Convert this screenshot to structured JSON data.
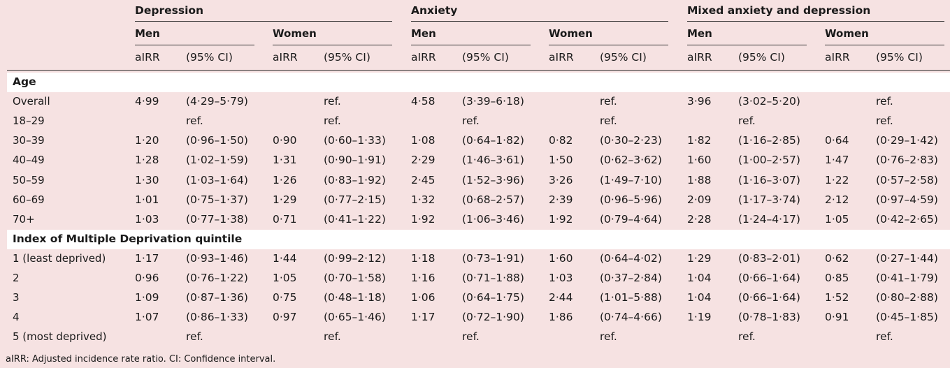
{
  "groups": [
    "Depression",
    "Anxiety",
    "Mixed anxiety and depression"
  ],
  "sexes": [
    "Men",
    "Women"
  ],
  "col_aIRR": "aIRR",
  "col_CI": "(95% CI)",
  "sections": [
    {
      "title": "Age",
      "rows": [
        {
          "label": "Overall",
          "vals": [
            "4·99",
            "(4·29–5·79)",
            "",
            "ref.",
            "4·58",
            "(3·39–6·18)",
            "",
            "ref.",
            "3·96",
            "(3·02–5·20)",
            "",
            "ref."
          ]
        },
        {
          "label": "18–29",
          "vals": [
            "",
            "ref.",
            "",
            "ref.",
            "",
            "ref.",
            "",
            "ref.",
            "",
            "ref.",
            "",
            "ref."
          ]
        },
        {
          "label": "30–39",
          "vals": [
            "1·20",
            "(0·96–1·50)",
            "0·90",
            "(0·60–1·33)",
            "1·08",
            "(0·64–1·82)",
            "0·82",
            "(0·30–2·23)",
            "1·82",
            "(1·16–2·85)",
            "0·64",
            "(0·29–1·42)"
          ]
        },
        {
          "label": "40–49",
          "vals": [
            "1·28",
            "(1·02–1·59)",
            "1·31",
            "(0·90–1·91)",
            "2·29",
            "(1·46–3·61)",
            "1·50",
            "(0·62–3·62)",
            "1·60",
            "(1·00–2·57)",
            "1·47",
            "(0·76–2·83)"
          ]
        },
        {
          "label": "50–59",
          "vals": [
            "1·30",
            "(1·03–1·64)",
            "1·26",
            "(0·83–1·92)",
            "2·45",
            "(1·52–3·96)",
            "3·26",
            "(1·49–7·10)",
            "1·88",
            "(1·16–3·07)",
            "1·22",
            "(0·57–2·58)"
          ]
        },
        {
          "label": "60–69",
          "vals": [
            "1·01",
            "(0·75–1·37)",
            "1·29",
            "(0·77–2·15)",
            "1·32",
            "(0·68–2·57)",
            "2·39",
            "(0·96–5·96)",
            "2·09",
            "(1·17–3·74)",
            "2·12",
            "(0·97–4·59)"
          ]
        },
        {
          "label": "70+",
          "vals": [
            "1·03",
            "(0·77–1·38)",
            "0·71",
            "(0·41–1·22)",
            "1·92",
            "(1·06–3·46)",
            "1·92",
            "(0·79–4·64)",
            "2·28",
            "(1·24–4·17)",
            "1·05",
            "(0·42–2·65)"
          ]
        }
      ]
    },
    {
      "title": "Index of Multiple Deprivation quintile",
      "rows": [
        {
          "label": "1 (least deprived)",
          "vals": [
            "1·17",
            "(0·93–1·46)",
            "1·44",
            "(0·99–2·12)",
            "1·18",
            "(0·73–1·91)",
            "1·60",
            "(0·64–4·02)",
            "1·29",
            "(0·83–2·01)",
            "0·62",
            "(0·27–1·44)"
          ]
        },
        {
          "label": "2",
          "vals": [
            "0·96",
            "(0·76–1·22)",
            "1·05",
            "(0·70–1·58)",
            "1·16",
            "(0·71–1·88)",
            "1·03",
            "(0·37–2·84)",
            "1·04",
            "(0·66–1·64)",
            "0·85",
            "(0·41–1·79)"
          ]
        },
        {
          "label": "3",
          "vals": [
            "1·09",
            "(0·87–1·36)",
            "0·75",
            "(0·48–1·18)",
            "1·06",
            "(0·64–1·75)",
            "2·44",
            "(1·01–5·88)",
            "1·04",
            "(0·66–1·64)",
            "1·52",
            "(0·80–2·88)"
          ]
        },
        {
          "label": "4",
          "vals": [
            "1·07",
            "(0·86–1·33)",
            "0·97",
            "(0·65–1·46)",
            "1·17",
            "(0·72–1·90)",
            "1·86",
            "(0·74–4·66)",
            "1·19",
            "(0·78–1·83)",
            "0·91",
            "(0·45–1·85)"
          ]
        },
        {
          "label": "5 (most deprived)",
          "vals": [
            "",
            "ref.",
            "",
            "ref.",
            "",
            "ref.",
            "",
            "ref.",
            "",
            "ref.",
            "",
            "ref."
          ]
        }
      ]
    }
  ],
  "footnote": "aIRR: Adjusted incidence rate ratio. CI: Confidence interval."
}
